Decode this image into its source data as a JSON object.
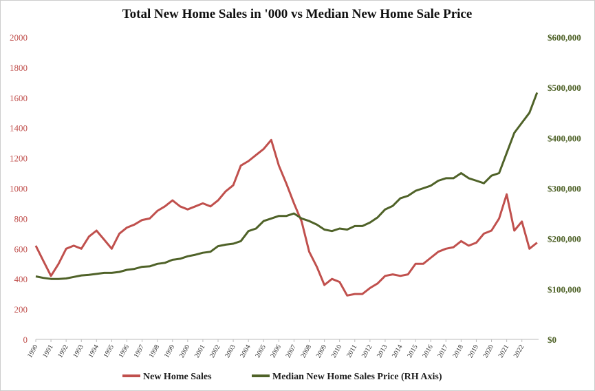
{
  "chart_data": {
    "type": "line",
    "title": "Total New Home Sales in '000 vs Median New Home Sale Price",
    "x": [
      1990,
      1990.5,
      1991,
      1991.5,
      1992,
      1992.5,
      1993,
      1993.5,
      1994,
      1994.5,
      1995,
      1995.5,
      1996,
      1996.5,
      1997,
      1997.5,
      1998,
      1998.5,
      1999,
      1999.5,
      2000,
      2000.5,
      2001,
      2001.5,
      2002,
      2002.5,
      2003,
      2003.5,
      2004,
      2004.5,
      2005,
      2005.5,
      2006,
      2006.5,
      2007,
      2007.5,
      2008,
      2008.5,
      2009,
      2009.5,
      2010,
      2010.5,
      2011,
      2011.5,
      2012,
      2012.5,
      2013,
      2013.5,
      2014,
      2014.5,
      2015,
      2015.5,
      2016,
      2016.5,
      2017,
      2017.5,
      2018,
      2018.5,
      2019,
      2019.5,
      2020,
      2020.5,
      2021,
      2021.5,
      2022,
      2022.5,
      2023
    ],
    "xlim": [
      1990,
      2023.1
    ],
    "xticks": [
      1990,
      1991,
      1992,
      1993,
      1994,
      1995,
      1996,
      1997,
      1998,
      1999,
      2000,
      2001,
      2002,
      2003,
      2004,
      2005,
      2006,
      2007,
      2008,
      2009,
      2010,
      2011,
      2012,
      2013,
      2014,
      2015,
      2016,
      2017,
      2018,
      2019,
      2020,
      2021,
      2022
    ],
    "ylim": [
      0,
      2000
    ],
    "yticks": [
      0,
      200,
      400,
      600,
      800,
      1000,
      1200,
      1400,
      1600,
      1800,
      2000
    ],
    "y2lim": [
      0,
      600000
    ],
    "y2ticks": [
      {
        "value": 0,
        "label": "$0"
      },
      {
        "value": 100000,
        "label": "$100,000"
      },
      {
        "value": 200000,
        "label": "$200,000"
      },
      {
        "value": 300000,
        "label": "$300,000"
      },
      {
        "value": 400000,
        "label": "$400,000"
      },
      {
        "value": 500000,
        "label": "$500,000"
      },
      {
        "value": 600000,
        "label": "$600,000"
      }
    ],
    "grid": false,
    "legend": "bottom",
    "series": [
      {
        "name": "New Home Sales",
        "color": "#c0504d",
        "values": [
          620,
          520,
          420,
          500,
          600,
          620,
          600,
          680,
          720,
          660,
          600,
          700,
          740,
          760,
          790,
          800,
          850,
          880,
          920,
          880,
          860,
          880,
          900,
          880,
          920,
          980,
          1020,
          1150,
          1180,
          1220,
          1260,
          1320,
          1150,
          1030,
          900,
          780,
          580,
          480,
          360,
          400,
          380,
          290,
          300,
          300,
          340,
          370,
          420,
          430,
          420,
          430,
          500,
          500,
          540,
          580,
          600,
          610,
          650,
          620,
          640,
          700,
          720,
          800,
          960,
          720,
          780,
          600,
          640
        ]
      },
      {
        "name": "Median New Home Sales Price (RH Axis)",
        "color": "#4f6228",
        "axis": "y2",
        "values": [
          125000,
          122000,
          120000,
          120000,
          121000,
          124000,
          127000,
          128000,
          130000,
          132000,
          132000,
          134000,
          138000,
          140000,
          144000,
          145000,
          150000,
          152000,
          158000,
          160000,
          165000,
          168000,
          172000,
          174000,
          185000,
          188000,
          190000,
          195000,
          215000,
          220000,
          235000,
          240000,
          245000,
          245000,
          250000,
          240000,
          235000,
          228000,
          218000,
          215000,
          220000,
          218000,
          225000,
          225000,
          232000,
          242000,
          258000,
          265000,
          280000,
          285000,
          295000,
          300000,
          305000,
          315000,
          320000,
          320000,
          330000,
          320000,
          315000,
          310000,
          325000,
          330000,
          370000,
          410000,
          430000,
          450000,
          490000
        ]
      }
    ]
  }
}
